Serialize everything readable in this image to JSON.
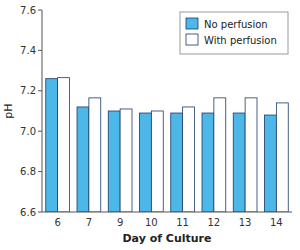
{
  "chart_data": {
    "type": "bar",
    "categories": [
      "6",
      "7",
      "9",
      "10",
      "11",
      "12",
      "13",
      "14"
    ],
    "series": [
      {
        "name": "No perfusion",
        "color": "#4db8e8",
        "values": [
          7.26,
          7.12,
          7.1,
          7.09,
          7.09,
          7.09,
          7.09,
          7.08
        ]
      },
      {
        "name": "With perfusion",
        "color": "white",
        "values": [
          7.265,
          7.165,
          7.11,
          7.1,
          7.12,
          7.165,
          7.165,
          7.14
        ]
      }
    ],
    "xlabel": "Day of Culture",
    "ylabel": "pH",
    "ylim": [
      6.6,
      7.6
    ],
    "yticks": [
      6.6,
      6.8,
      {
        "value": 7.0,
        "label": "7.0"
      },
      7.2,
      7.4,
      7.6
    ],
    "legend": "upper right",
    "grid": false
  }
}
